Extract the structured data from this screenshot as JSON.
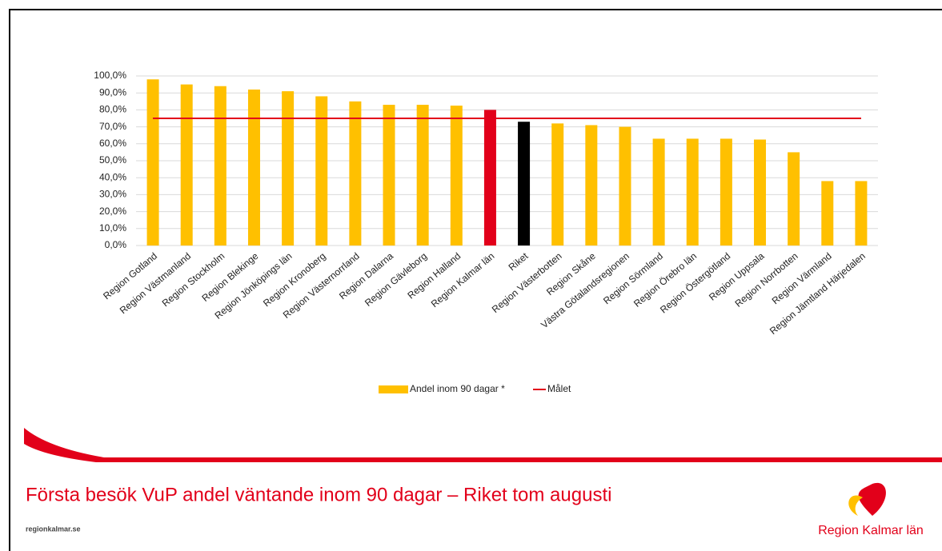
{
  "chart_data": {
    "type": "bar",
    "categories": [
      "Region Gotland",
      "Region Västmanland",
      "Region Stockholm",
      "Region Blekinge",
      "Region Jönköpings län",
      "Region Kronoberg",
      "Region Västernorrland",
      "Region Dalarna",
      "Region Gävleborg",
      "Region Halland",
      "Region Kalmar län",
      "Riket",
      "Region Västerbotten",
      "Region Skåne",
      "Västra Götalandsregionen",
      "Region Sörmland",
      "Region Örebro län",
      "Region Östergötland",
      "Region Uppsala",
      "Region Norrbotten",
      "Region Värmland",
      "Region Jämtland Härjedalen"
    ],
    "series": [
      {
        "name": "Andel inom 90 dagar *",
        "color": "#ffc000",
        "colors": [
          "#ffc000",
          "#ffc000",
          "#ffc000",
          "#ffc000",
          "#ffc000",
          "#ffc000",
          "#ffc000",
          "#ffc000",
          "#ffc000",
          "#ffc000",
          "#e2001a",
          "#000000",
          "#ffc000",
          "#ffc000",
          "#ffc000",
          "#ffc000",
          "#ffc000",
          "#ffc000",
          "#ffc000",
          "#ffc000",
          "#ffc000",
          "#ffc000"
        ],
        "values": [
          98,
          95,
          94,
          92,
          91,
          88,
          85,
          83,
          83,
          82.5,
          80,
          73,
          72,
          71,
          70,
          63,
          63,
          63,
          62.5,
          55,
          38,
          38
        ]
      }
    ],
    "target": {
      "name": "Målet",
      "value": 75,
      "color": "#e2001a"
    },
    "ylim": [
      0,
      100
    ],
    "yticks": [
      {
        "value": 0,
        "label": "0,0%"
      },
      {
        "value": 10,
        "label": "10,0%"
      },
      {
        "value": 20,
        "label": "20,0%"
      },
      {
        "value": 30,
        "label": "30,0%"
      },
      {
        "value": 40,
        "label": "40,0%"
      },
      {
        "value": 50,
        "label": "50,0%"
      },
      {
        "value": 60,
        "label": "60,0%"
      },
      {
        "value": 70,
        "label": "70,0%"
      },
      {
        "value": 80,
        "label": "80,0%"
      },
      {
        "value": 90,
        "label": "90,0%"
      },
      {
        "value": 100,
        "label": "100,0%"
      }
    ],
    "grid": true,
    "legend": "bottom"
  },
  "footer": {
    "title": "Första besök VuP andel väntande inom 90 dagar – Riket tom augusti",
    "url": "regionkalmar.se",
    "logo": "Region Kalmar län"
  }
}
